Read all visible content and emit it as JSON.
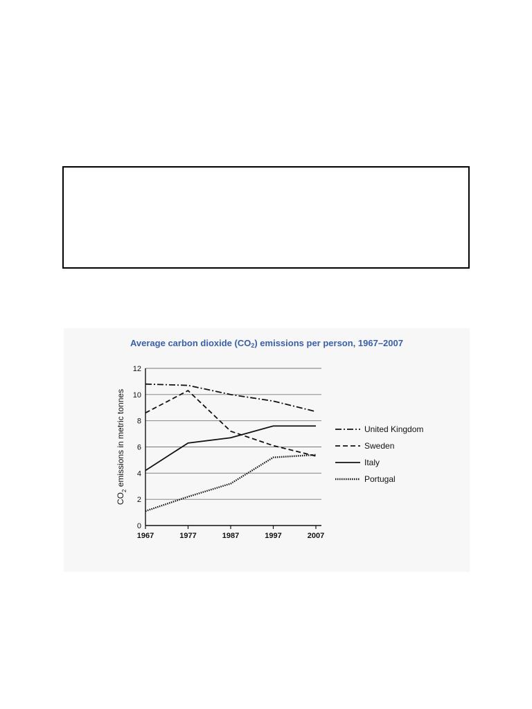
{
  "chart_data": {
    "type": "line",
    "title": {
      "before": "Average carbon dioxide (CO",
      "subscript": "2",
      "after": ") emissions per person, 1967–2007"
    },
    "ylabel": {
      "before": "CO",
      "subscript": "2",
      "after": " emissions in metric tonnes"
    },
    "xlabel": "",
    "x": [
      1967,
      1977,
      1987,
      1997,
      2007
    ],
    "x_ticks": [
      "1967",
      "1977",
      "1987",
      "1997",
      "2007"
    ],
    "ylim": [
      0,
      12
    ],
    "y_ticks": [
      "0",
      "2",
      "4",
      "6",
      "8",
      "10",
      "12"
    ],
    "grid": "horizontal",
    "legend_position": "right",
    "series": [
      {
        "name": "United Kingdom",
        "style": "dash-dot",
        "values": [
          10.8,
          10.7,
          10.0,
          9.5,
          8.7
        ]
      },
      {
        "name": "Sweden",
        "style": "dashed",
        "values": [
          8.6,
          10.3,
          7.2,
          6.1,
          5.3
        ]
      },
      {
        "name": "Italy",
        "style": "solid",
        "values": [
          4.2,
          6.3,
          6.7,
          7.6,
          7.6
        ]
      },
      {
        "name": "Portugal",
        "style": "dotted",
        "values": [
          1.1,
          2.2,
          3.2,
          5.2,
          5.4
        ]
      }
    ]
  }
}
